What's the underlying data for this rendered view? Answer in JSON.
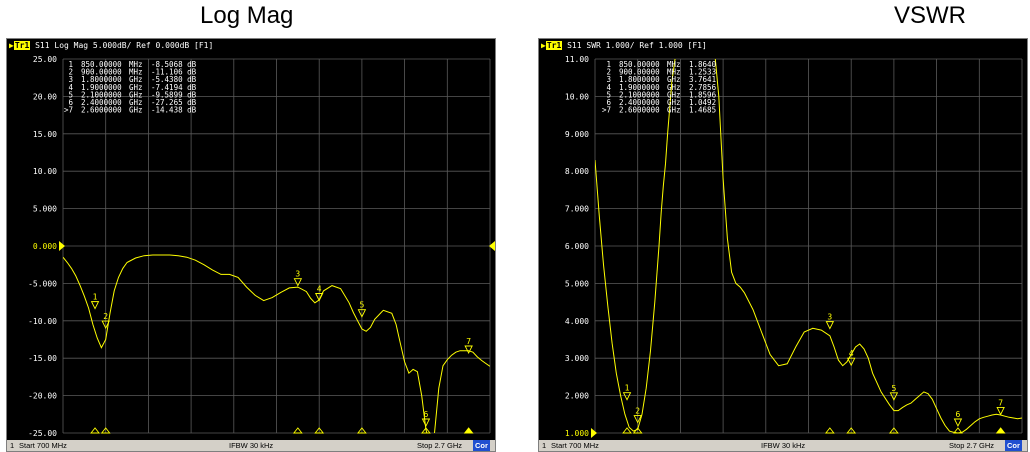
{
  "left_title": "Log Mag",
  "right_title": "VSWR",
  "colors": {
    "trace": "#ffff00",
    "grid": "#5a5a5a",
    "text": "#ffffff",
    "background": "#000000",
    "cor": "#1f4fd0"
  },
  "left_panel": {
    "trace_tag": "Tr1",
    "header_text": "S11 Log Mag 5.000dB/ Ref 0.000dB [F1]",
    "footer": {
      "channel": "1",
      "start": "Start 700 MHz",
      "ifbw": "IFBW 30 kHz",
      "stop": "Stop 2.7 GHz",
      "cor": "Cor"
    },
    "markers": [
      {
        "num": "1",
        "freq": "850.00000",
        "unit": "MHz",
        "value": "-8.5068 dB"
      },
      {
        "num": "2",
        "freq": "900.00000",
        "unit": "MHz",
        "value": "-11.106 dB"
      },
      {
        "num": "3",
        "freq": "1.8000000",
        "unit": "GHz",
        "value": "-5.4380 dB"
      },
      {
        "num": "4",
        "freq": "1.9000000",
        "unit": "GHz",
        "value": "-7.4194 dB"
      },
      {
        "num": "5",
        "freq": "2.1000000",
        "unit": "GHz",
        "value": "-9.5899 dB"
      },
      {
        "num": "6",
        "freq": "2.4000000",
        "unit": "GHz",
        "value": "-27.265 dB"
      },
      {
        "num": ">7",
        "freq": "2.6000000",
        "unit": "GHz",
        "value": "-14.438 dB"
      }
    ]
  },
  "right_panel": {
    "trace_tag": "Tr1",
    "header_text": "S11 SWR 1.000/ Ref 1.000 [F1]",
    "footer": {
      "channel": "1",
      "start": "Start 700 MHz",
      "ifbw": "IFBW 30 kHz",
      "stop": "Stop 2.7 GHz",
      "cor": "Cor"
    },
    "markers": [
      {
        "num": "1",
        "freq": "850.00000",
        "unit": "MHz",
        "value": "1.8640"
      },
      {
        "num": "2",
        "freq": "900.00000",
        "unit": "MHz",
        "value": "1.2533"
      },
      {
        "num": "3",
        "freq": "1.8000000",
        "unit": "GHz",
        "value": "3.7641"
      },
      {
        "num": "4",
        "freq": "1.9000000",
        "unit": "GHz",
        "value": "2.7856"
      },
      {
        "num": "5",
        "freq": "2.1000000",
        "unit": "GHz",
        "value": "1.8596"
      },
      {
        "num": "6",
        "freq": "2.4000000",
        "unit": "GHz",
        "value": "1.0492"
      },
      {
        "num": ">7",
        "freq": "2.6000000",
        "unit": "GHz",
        "value": "1.4685"
      }
    ]
  },
  "chart_data": [
    {
      "type": "line",
      "title": "Log Mag",
      "xlim": [
        700,
        2700
      ],
      "ylim": [
        -25,
        25
      ],
      "y_ticks": [
        "25.00",
        "20.00",
        "15.00",
        "10.00",
        "5.000",
        "0.000",
        "-5.000",
        "-10.00",
        "-15.00",
        "-20.00",
        "-25.00"
      ],
      "reference_value": 0,
      "grid": true,
      "series": [
        {
          "x": [
            700,
            720,
            740,
            760,
            780,
            800,
            820,
            840,
            860,
            880,
            900,
            920,
            940,
            960,
            980,
            1000,
            1040,
            1080,
            1120,
            1160,
            1200,
            1240,
            1280,
            1320,
            1360,
            1400,
            1440,
            1480,
            1520,
            1560,
            1600,
            1640,
            1680,
            1720,
            1760,
            1800,
            1840,
            1860,
            1880,
            1900,
            1920,
            1960,
            2000,
            2040,
            2060,
            2080,
            2100,
            2120,
            2140,
            2160,
            2200,
            2240,
            2260,
            2280,
            2300,
            2320,
            2340,
            2360,
            2380,
            2400,
            2420,
            2440,
            2460,
            2480,
            2500,
            2520,
            2540,
            2560,
            2580,
            2600,
            2620,
            2640,
            2660,
            2680,
            2700
          ],
          "y": [
            -1.5,
            -2.2,
            -3.0,
            -4.0,
            -5.3,
            -6.7,
            -8.3,
            -10.5,
            -12.3,
            -13.6,
            -12.5,
            -9.0,
            -6.0,
            -4.2,
            -3.0,
            -2.2,
            -1.6,
            -1.3,
            -1.2,
            -1.2,
            -1.2,
            -1.3,
            -1.5,
            -1.9,
            -2.5,
            -3.2,
            -3.8,
            -3.8,
            -4.2,
            -5.5,
            -6.6,
            -7.3,
            -6.9,
            -6.2,
            -5.6,
            -5.5,
            -6.1,
            -7.0,
            -7.6,
            -7.2,
            -6.0,
            -5.3,
            -5.7,
            -7.6,
            -8.9,
            -10.0,
            -11.1,
            -11.4,
            -10.9,
            -9.8,
            -8.6,
            -9.0,
            -10.5,
            -13.0,
            -15.5,
            -17.0,
            -16.5,
            -16.8,
            -20.0,
            -24.5,
            -26.8,
            -25.0,
            -19.0,
            -16.0,
            -15.2,
            -14.6,
            -14.2,
            -14.0,
            -14.0,
            -14.0,
            -14.2,
            -14.8,
            -15.3,
            -15.7,
            -16.1
          ]
        }
      ],
      "markers": [
        {
          "label": "1",
          "x": 850,
          "y": -8.5068
        },
        {
          "label": "2",
          "x": 900,
          "y": -11.106
        },
        {
          "label": "3",
          "x": 1800,
          "y": -5.438
        },
        {
          "label": "4",
          "x": 1900,
          "y": -7.4194
        },
        {
          "label": "5",
          "x": 2100,
          "y": -9.5899
        },
        {
          "label": "6",
          "x": 2400,
          "y": -27.265
        },
        {
          "label": "7",
          "x": 2600,
          "y": -14.438
        }
      ]
    },
    {
      "type": "line",
      "title": "VSWR",
      "xlim": [
        700,
        2700
      ],
      "ylim": [
        1,
        11
      ],
      "y_ticks": [
        "11.00",
        "10.00",
        "9.000",
        "8.000",
        "7.000",
        "6.000",
        "5.000",
        "4.000",
        "3.000",
        "2.000",
        "1.000"
      ],
      "reference_value": 1,
      "grid": true,
      "series": [
        {
          "x": [
            700,
            720,
            740,
            760,
            780,
            800,
            820,
            840,
            860,
            880,
            900,
            920,
            940,
            960,
            980,
            1000,
            1010,
            1020,
            1030,
            1040,
            1060,
            1080,
            1100,
            1120,
            1140,
            1160,
            1180,
            1200,
            1220,
            1240,
            1260,
            1280,
            1300,
            1320,
            1340,
            1360,
            1380,
            1400,
            1440,
            1480,
            1520,
            1560,
            1600,
            1640,
            1680,
            1720,
            1760,
            1800,
            1820,
            1840,
            1860,
            1880,
            1900,
            1920,
            1940,
            1960,
            1980,
            2000,
            2040,
            2080,
            2100,
            2120,
            2140,
            2160,
            2180,
            2200,
            2240,
            2260,
            2280,
            2300,
            2320,
            2340,
            2360,
            2380,
            2400,
            2420,
            2440,
            2460,
            2480,
            2500,
            2520,
            2540,
            2560,
            2580,
            2600,
            2620,
            2640,
            2660,
            2680,
            2700
          ],
          "y": [
            8.3,
            6.8,
            5.5,
            4.4,
            3.4,
            2.6,
            2.0,
            1.5,
            1.15,
            1.05,
            1.1,
            1.5,
            2.2,
            3.2,
            4.5,
            6.0,
            6.9,
            7.6,
            8.2,
            9.0,
            10.4,
            11.2,
            11.5,
            11.5,
            11.5,
            11.5,
            11.5,
            11.5,
            11.5,
            11.5,
            11.2,
            10.0,
            7.8,
            6.2,
            5.3,
            5.0,
            4.9,
            4.75,
            4.3,
            3.7,
            3.1,
            2.8,
            2.85,
            3.3,
            3.7,
            3.8,
            3.75,
            3.6,
            3.3,
            2.95,
            2.8,
            2.9,
            3.1,
            3.3,
            3.38,
            3.25,
            3.0,
            2.6,
            2.1,
            1.75,
            1.6,
            1.6,
            1.68,
            1.75,
            1.8,
            1.9,
            2.1,
            2.05,
            1.9,
            1.65,
            1.4,
            1.2,
            1.05,
            1.02,
            1.0,
            1.02,
            1.1,
            1.2,
            1.3,
            1.38,
            1.42,
            1.45,
            1.48,
            1.5,
            1.48,
            1.45,
            1.42,
            1.4,
            1.38,
            1.4
          ]
        }
      ],
      "markers": [
        {
          "label": "1",
          "x": 850,
          "y": 1.864
        },
        {
          "label": "2",
          "x": 900,
          "y": 1.2533
        },
        {
          "label": "3",
          "x": 1800,
          "y": 3.7641
        },
        {
          "label": "4",
          "x": 1900,
          "y": 2.7856
        },
        {
          "label": "5",
          "x": 2100,
          "y": 1.8596
        },
        {
          "label": "6",
          "x": 2400,
          "y": 1.0492
        },
        {
          "label": "7",
          "x": 2600,
          "y": 1.4685
        }
      ]
    }
  ]
}
